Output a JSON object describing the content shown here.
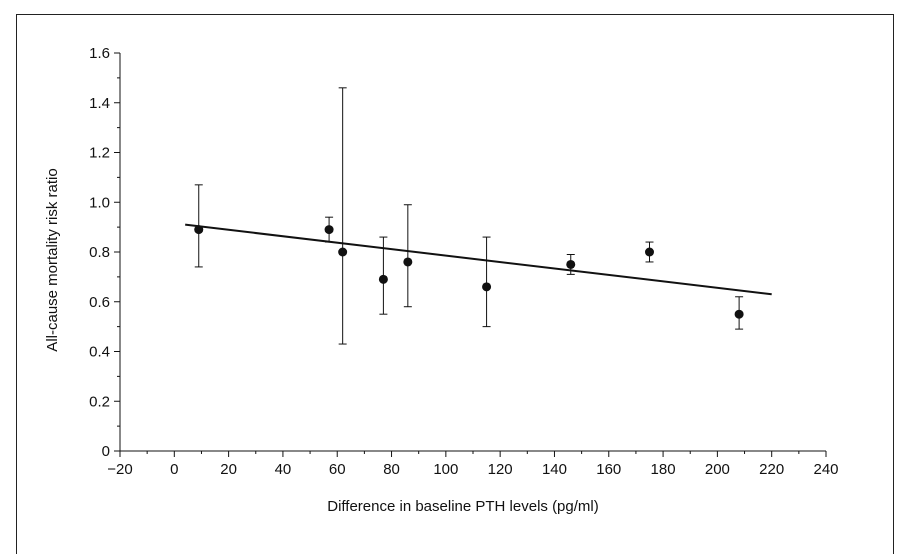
{
  "chart_data": {
    "type": "scatter",
    "xlabel": "Difference in baseline PTH levels (pg/ml)",
    "ylabel": "All-cause mortality risk ratio",
    "xlim": [
      -20,
      240
    ],
    "ylim": [
      0,
      1.6
    ],
    "x_ticks": [
      -20,
      0,
      20,
      40,
      60,
      80,
      100,
      120,
      140,
      160,
      180,
      200,
      220,
      240
    ],
    "x_tick_labels": [
      "−20",
      "0",
      "20",
      "40",
      "60",
      "80",
      "100",
      "120",
      "140",
      "160",
      "180",
      "200",
      "220",
      "240"
    ],
    "y_ticks": [
      0,
      0.2,
      0.4,
      0.6,
      0.8,
      1.0,
      1.2,
      1.4,
      1.6
    ],
    "y_tick_labels": [
      "0",
      "0.2",
      "0.4",
      "0.6",
      "0.8",
      "1.0",
      "1.2",
      "1.4",
      "1.6"
    ],
    "grid": false,
    "points": [
      {
        "x": 9,
        "y": 0.89,
        "lower": 0.74,
        "upper": 1.07
      },
      {
        "x": 57,
        "y": 0.89,
        "lower": 0.84,
        "upper": 0.94
      },
      {
        "x": 62,
        "y": 0.8,
        "lower": 0.43,
        "upper": 1.46
      },
      {
        "x": 77,
        "y": 0.69,
        "lower": 0.55,
        "upper": 0.86
      },
      {
        "x": 86,
        "y": 0.76,
        "lower": 0.58,
        "upper": 0.99
      },
      {
        "x": 115,
        "y": 0.66,
        "lower": 0.5,
        "upper": 0.86
      },
      {
        "x": 146,
        "y": 0.75,
        "lower": 0.71,
        "upper": 0.79
      },
      {
        "x": 175,
        "y": 0.8,
        "lower": 0.76,
        "upper": 0.84
      },
      {
        "x": 208,
        "y": 0.55,
        "lower": 0.49,
        "upper": 0.62
      }
    ],
    "regression_line": {
      "x": [
        4,
        220
      ],
      "y": [
        0.91,
        0.63
      ]
    },
    "colors": {
      "marks": "#111111"
    }
  }
}
